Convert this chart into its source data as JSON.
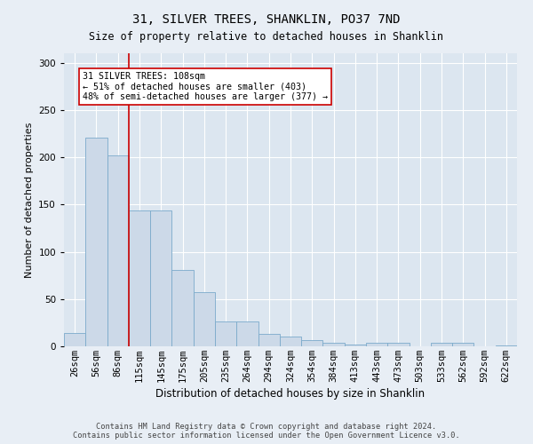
{
  "title": "31, SILVER TREES, SHANKLIN, PO37 7ND",
  "subtitle": "Size of property relative to detached houses in Shanklin",
  "xlabel": "Distribution of detached houses by size in Shanklin",
  "ylabel": "Number of detached properties",
  "footer_line1": "Contains HM Land Registry data © Crown copyright and database right 2024.",
  "footer_line2": "Contains public sector information licensed under the Open Government Licence v3.0.",
  "bin_labels": [
    "26sqm",
    "56sqm",
    "86sqm",
    "115sqm",
    "145sqm",
    "175sqm",
    "205sqm",
    "235sqm",
    "264sqm",
    "294sqm",
    "324sqm",
    "354sqm",
    "384sqm",
    "413sqm",
    "443sqm",
    "473sqm",
    "503sqm",
    "533sqm",
    "562sqm",
    "592sqm",
    "622sqm"
  ],
  "bar_values": [
    14,
    221,
    202,
    144,
    144,
    81,
    57,
    26,
    26,
    13,
    10,
    7,
    4,
    2,
    4,
    4,
    0,
    4,
    4,
    0,
    1
  ],
  "bar_color": "#ccd9e8",
  "bar_edgecolor": "#7baacb",
  "background_color": "#e8eef5",
  "plot_background_color": "#dce6f0",
  "grid_color": "#ffffff",
  "vline_color": "#cc0000",
  "vline_x_index": 3,
  "annotation_text": "31 SILVER TREES: 108sqm\n← 51% of detached houses are smaller (403)\n48% of semi-detached houses are larger (377) →",
  "ylim": [
    0,
    310
  ],
  "yticks": [
    0,
    50,
    100,
    150,
    200,
    250,
    300
  ],
  "title_fontsize": 10,
  "subtitle_fontsize": 8.5,
  "ylabel_fontsize": 8,
  "xlabel_fontsize": 8.5,
  "tick_fontsize": 7.5,
  "footer_fontsize": 6.2
}
